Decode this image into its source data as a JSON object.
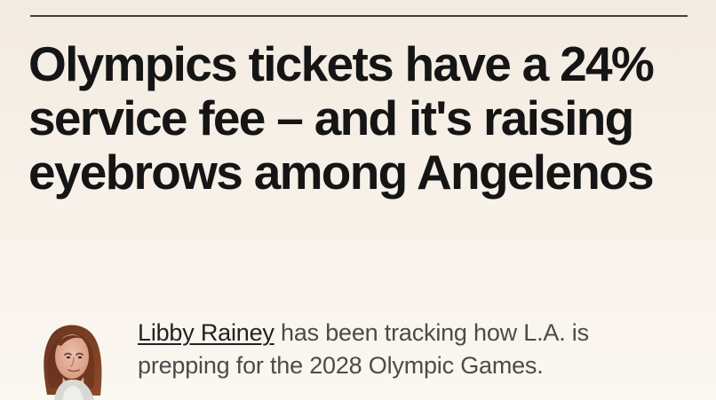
{
  "headline": "Olympics tickets have a 24% service fee – and it's raising eyebrows among Angelenos",
  "byline": {
    "author_name": "Libby Rainey",
    "note": " has been tracking how L.A. is prepping for the 2028 Olympic Games."
  },
  "colors": {
    "background_top": "#f3ebe1",
    "background_bottom": "#fbf7f1",
    "headline_text": "#151515",
    "body_text": "#4b4b4b",
    "rule": "#3f3f3f"
  },
  "icons": {
    "author_avatar": "author-photo"
  }
}
